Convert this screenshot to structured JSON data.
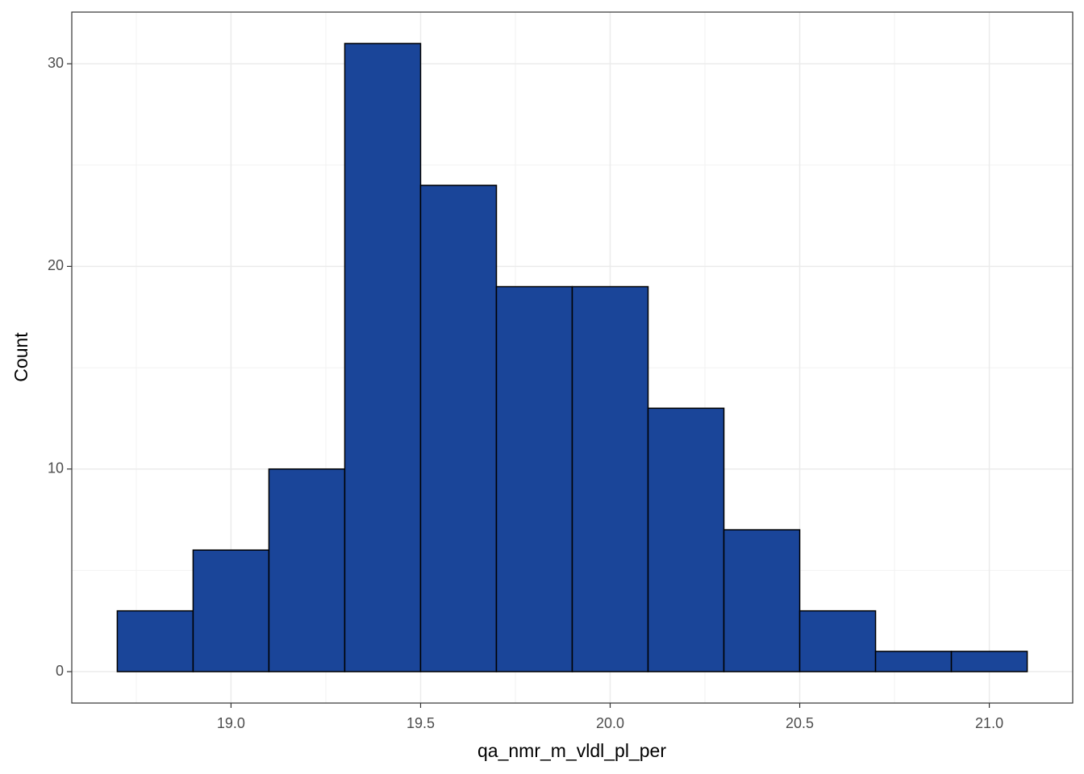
{
  "chart_data": {
    "type": "histogram",
    "x_label": "qa_nmr_m_vldl_pl_per",
    "y_label": "Count",
    "bins": [
      18.7,
      18.9,
      19.1,
      19.3,
      19.5,
      19.7,
      19.9,
      20.1,
      20.3,
      20.5,
      20.7,
      20.9,
      21.1
    ],
    "values": [
      3,
      6,
      10,
      31,
      24,
      19,
      19,
      13,
      7,
      3,
      1,
      1
    ],
    "color": "#1a4599",
    "edge_color": "#000000",
    "xlim": [
      18.58,
      21.22
    ],
    "ylim": [
      -1.55,
      32.55
    ],
    "xticks": [
      {
        "value": 19,
        "label": "19.0"
      },
      19.5,
      {
        "value": 20,
        "label": "20.0"
      },
      20.5,
      {
        "value": 21,
        "label": "21.0"
      }
    ],
    "yticks": [
      0,
      10,
      20,
      30
    ],
    "xminor": [
      18.75,
      19.25,
      19.75,
      20.25,
      20.75
    ],
    "yminor": [
      5,
      15,
      25
    ],
    "grid": true
  }
}
